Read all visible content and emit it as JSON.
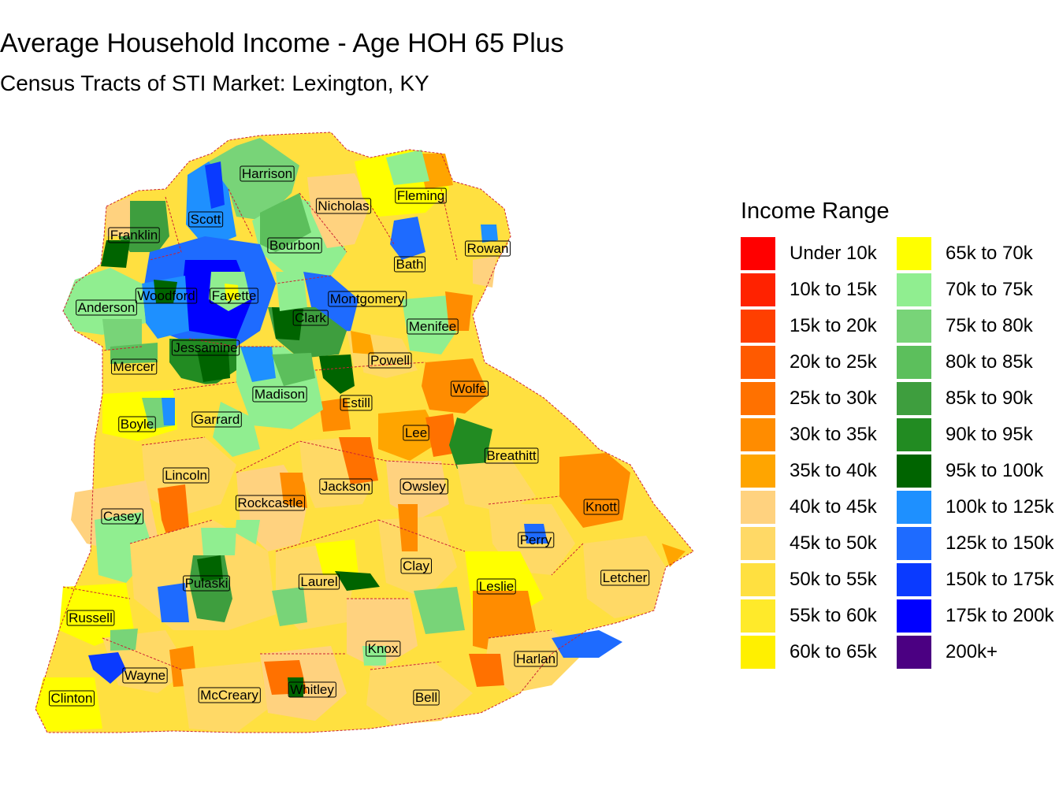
{
  "title": "Average Household Income - Age HOH 65 Plus",
  "subtitle": "Census Tracts of STI Market: Lexington, KY",
  "legend": {
    "title": "Income Range",
    "items": [
      {
        "label": "Under 10k",
        "color": "#FF0000"
      },
      {
        "label": "10k to 15k",
        "color": "#FF2200"
      },
      {
        "label": "15k to 20k",
        "color": "#FF3F00"
      },
      {
        "label": "20k to 25k",
        "color": "#FF5A00"
      },
      {
        "label": "25k to 30k",
        "color": "#FF7100"
      },
      {
        "label": "30k to 35k",
        "color": "#FF8C00"
      },
      {
        "label": "35k to 40k",
        "color": "#FFA500"
      },
      {
        "label": "40k to 45k",
        "color": "#FFD27F"
      },
      {
        "label": "45k to 50k",
        "color": "#FFD966"
      },
      {
        "label": "50k to 55k",
        "color": "#FFE040"
      },
      {
        "label": "55k to 60k",
        "color": "#FFEA2A"
      },
      {
        "label": "60k to 65k",
        "color": "#FFF000"
      },
      {
        "label": "65k to 70k",
        "color": "#FFFF00"
      },
      {
        "label": "70k to 75k",
        "color": "#90EE90"
      },
      {
        "label": "75k to 80k",
        "color": "#78D478"
      },
      {
        "label": "80k to 85k",
        "color": "#5CBF5C"
      },
      {
        "label": "85k to 90k",
        "color": "#3E9E3E"
      },
      {
        "label": "90k to 95k",
        "color": "#228B22"
      },
      {
        "label": "95k to 100k",
        "color": "#006400"
      },
      {
        "label": "100k to 125k",
        "color": "#1E90FF"
      },
      {
        "label": "125k to 150k",
        "color": "#1E6BFF"
      },
      {
        "label": "150k to 175k",
        "color": "#0A3AFF"
      },
      {
        "label": "175k to 200k",
        "color": "#0000FF"
      },
      {
        "label": "200k+",
        "color": "#4B0082"
      }
    ]
  },
  "counties": [
    {
      "name": "Harrison"
    },
    {
      "name": "Fleming"
    },
    {
      "name": "Nicholas"
    },
    {
      "name": "Scott"
    },
    {
      "name": "Franklin"
    },
    {
      "name": "Bourbon"
    },
    {
      "name": "Bath"
    },
    {
      "name": "Rowan"
    },
    {
      "name": "Woodford"
    },
    {
      "name": "Fayette"
    },
    {
      "name": "Montgomery"
    },
    {
      "name": "Anderson"
    },
    {
      "name": "Clark"
    },
    {
      "name": "Menifee"
    },
    {
      "name": "Jessamine"
    },
    {
      "name": "Mercer"
    },
    {
      "name": "Powell"
    },
    {
      "name": "Madison"
    },
    {
      "name": "Wolfe"
    },
    {
      "name": "Estill"
    },
    {
      "name": "Boyle"
    },
    {
      "name": "Garrard"
    },
    {
      "name": "Lee"
    },
    {
      "name": "Breathitt"
    },
    {
      "name": "Lincoln"
    },
    {
      "name": "Jackson"
    },
    {
      "name": "Owsley"
    },
    {
      "name": "Knott"
    },
    {
      "name": "Casey"
    },
    {
      "name": "Rockcastle"
    },
    {
      "name": "Perry"
    },
    {
      "name": "Clay"
    },
    {
      "name": "Letcher"
    },
    {
      "name": "Pulaski"
    },
    {
      "name": "Laurel"
    },
    {
      "name": "Leslie"
    },
    {
      "name": "Russell"
    },
    {
      "name": "Knox"
    },
    {
      "name": "Harlan"
    },
    {
      "name": "Wayne"
    },
    {
      "name": "Clinton"
    },
    {
      "name": "McCreary"
    },
    {
      "name": "Whitley"
    },
    {
      "name": "Bell"
    }
  ]
}
